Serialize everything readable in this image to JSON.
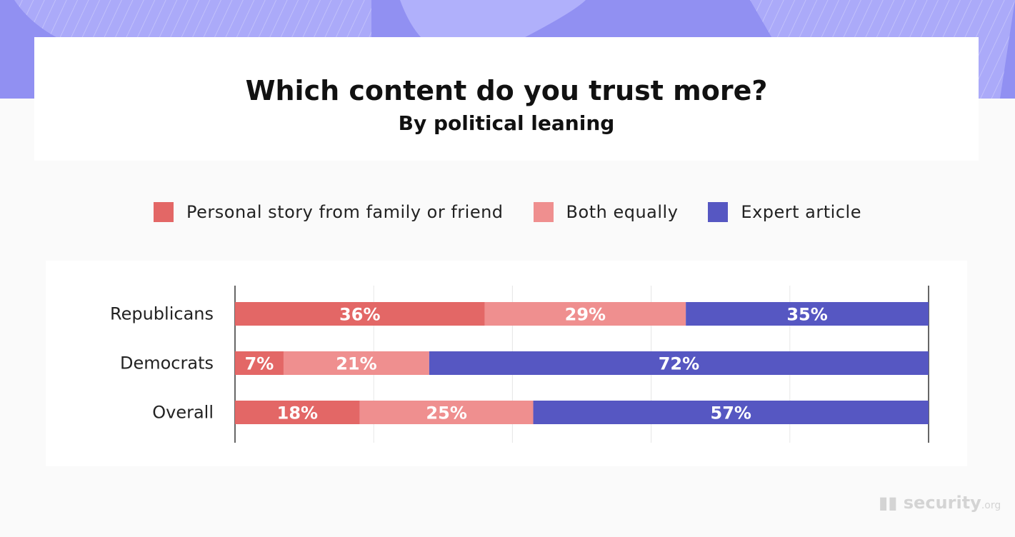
{
  "colors": {
    "header": "#9190f2",
    "personal": "#e36766",
    "both": "#ef8f8f",
    "expert": "#5657c2"
  },
  "brand": {
    "logo": "security.org"
  },
  "chart_data": {
    "type": "bar",
    "orientation": "horizontal-stacked-100",
    "title": "Which content do you trust more?",
    "subtitle": "By political leaning",
    "categories": [
      "Republicans",
      "Democrats",
      "Overall"
    ],
    "series": [
      {
        "name": "Personal story from family or friend",
        "values": [
          36,
          7,
          18
        ],
        "labels": [
          "36%",
          "7%",
          "18%"
        ],
        "color": "#e36766"
      },
      {
        "name": "Both equally",
        "values": [
          29,
          21,
          25
        ],
        "labels": [
          "29%",
          "21%",
          "25%"
        ],
        "color": "#ef8f8f"
      },
      {
        "name": "Expert article",
        "values": [
          35,
          72,
          57
        ],
        "labels": [
          "35%",
          "72%",
          "57%"
        ],
        "color": "#5657c2"
      }
    ],
    "xlim": [
      0,
      100
    ],
    "grid": true,
    "legend": "top"
  }
}
